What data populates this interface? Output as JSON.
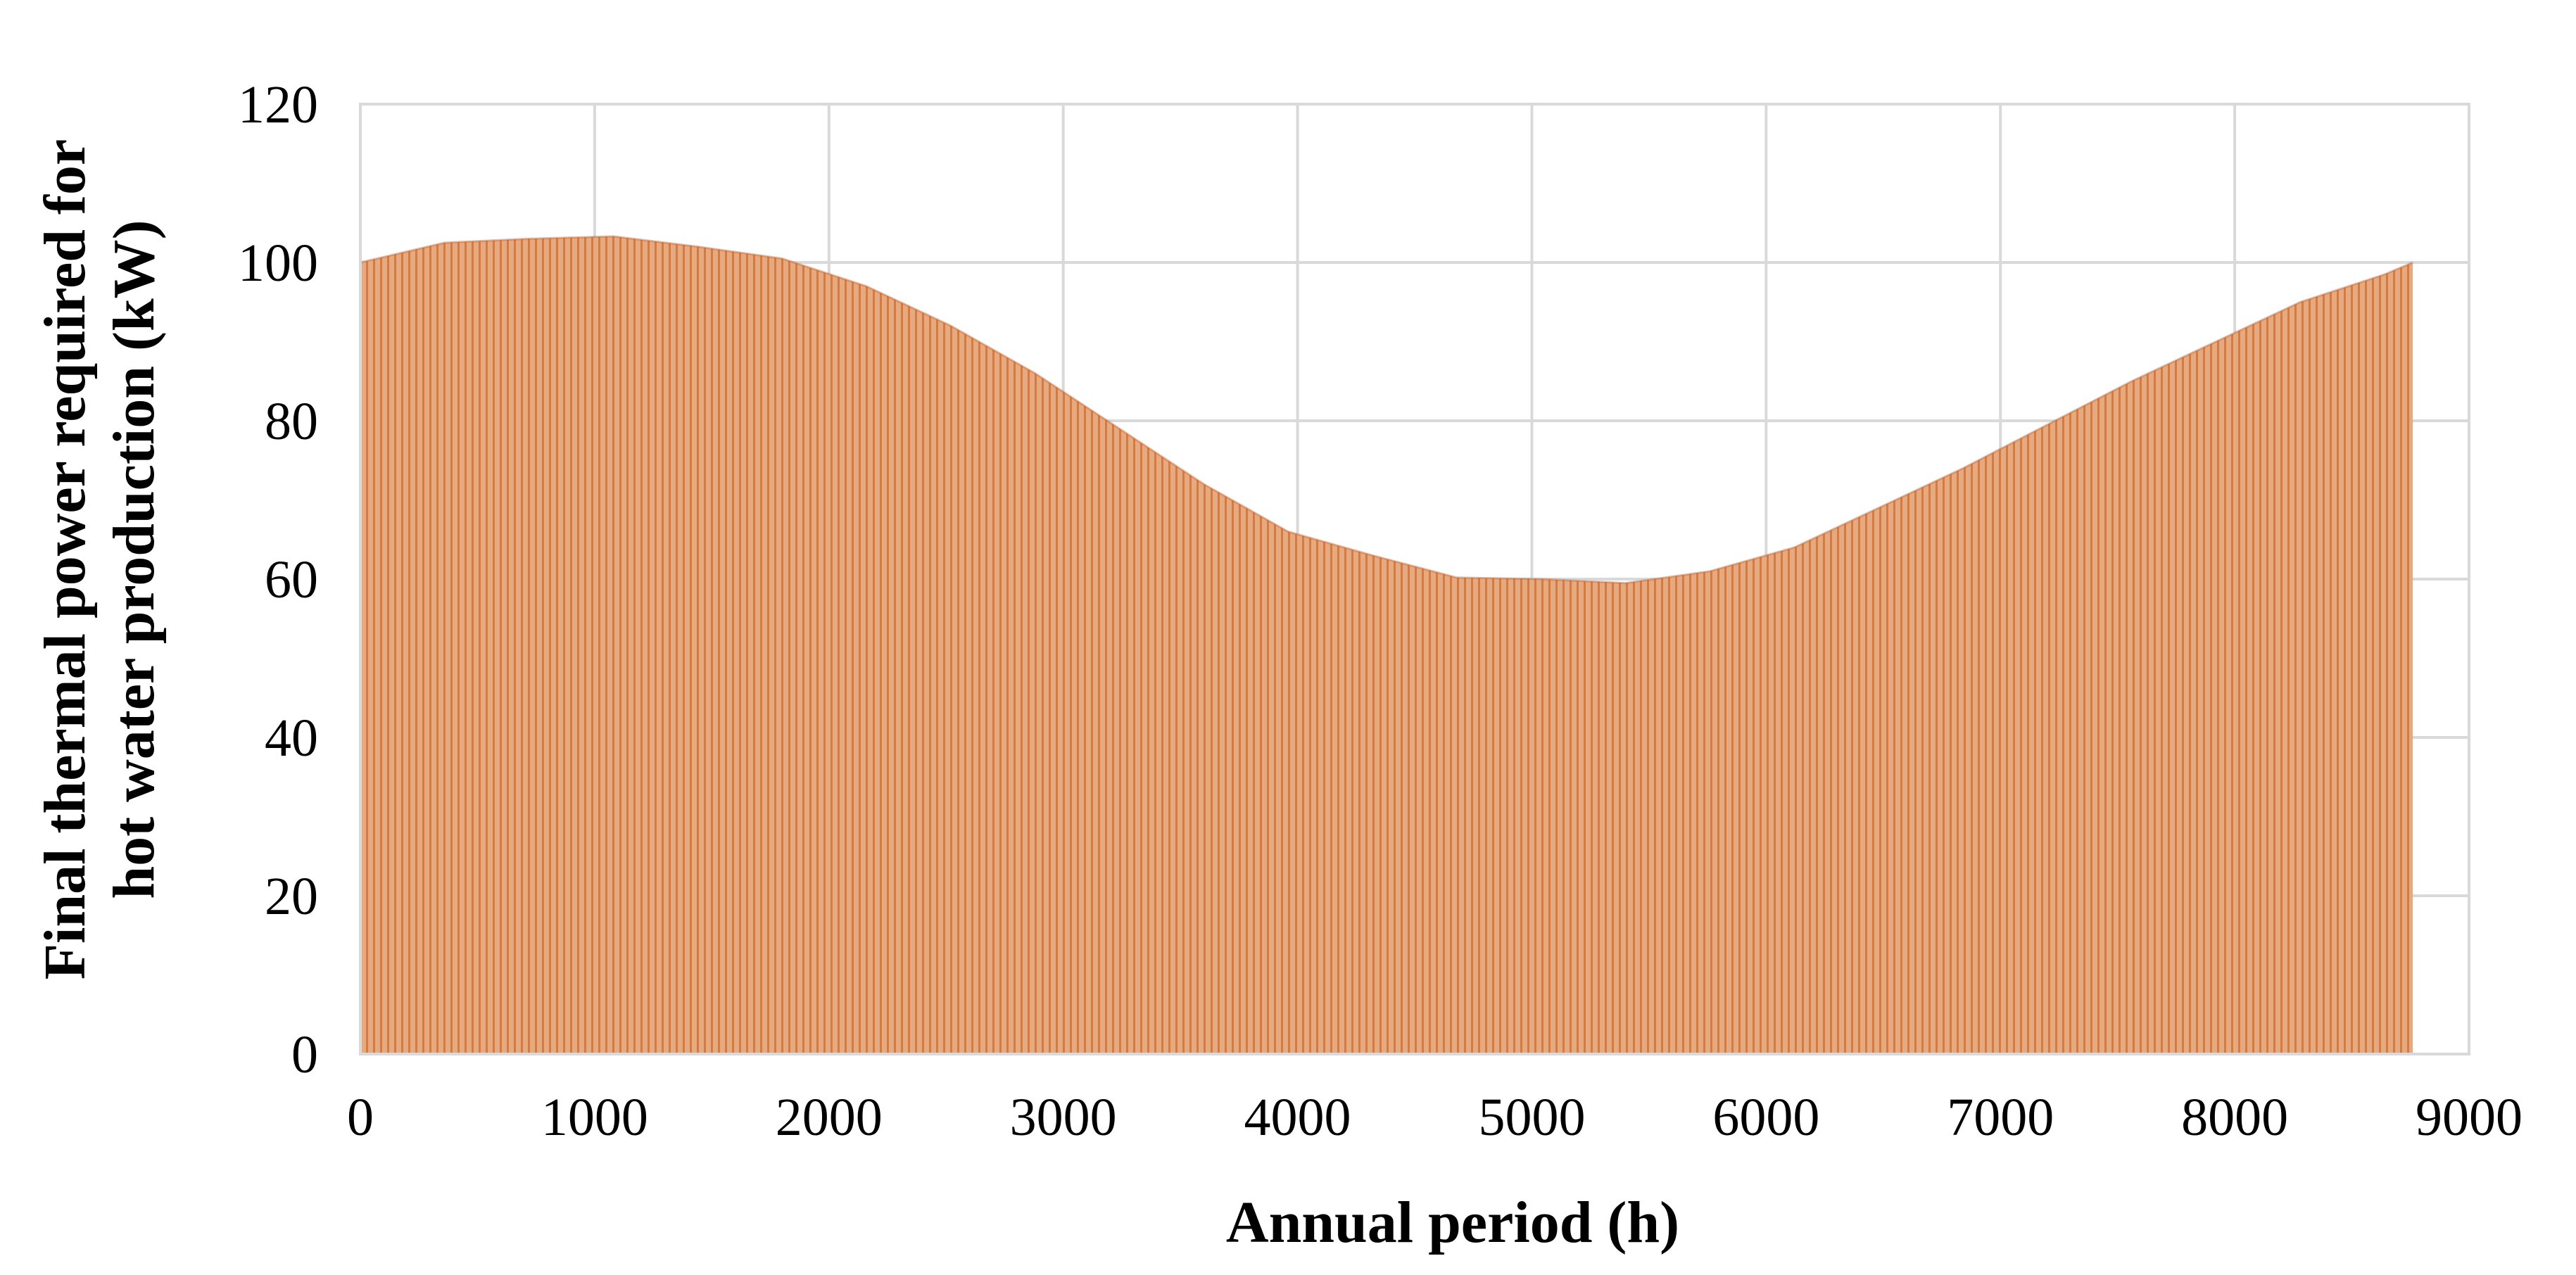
{
  "chart_data": {
    "type": "area",
    "title": "",
    "xlabel": "Annual period (h)",
    "ylabel_line1": "Final thermal power required for",
    "ylabel_line2": "hot water production (kW)",
    "xlim": [
      0,
      9000
    ],
    "ylim": [
      0,
      120
    ],
    "x_ticks": [
      0,
      1000,
      2000,
      3000,
      4000,
      5000,
      6000,
      7000,
      8000,
      9000
    ],
    "y_ticks": [
      0,
      20,
      40,
      60,
      80,
      100,
      120
    ],
    "x_tick_labels": [
      "0",
      "1000",
      "2000",
      "3000",
      "4000",
      "5000",
      "6000",
      "7000",
      "8000",
      "9000"
    ],
    "y_tick_labels": [
      "0",
      "20",
      "40",
      "60",
      "80",
      "100",
      "120"
    ],
    "grid": true,
    "series": [
      {
        "name": "Final thermal power (kW)",
        "color": "#e3a679",
        "stroke_color": "#c9632a",
        "note": "dense hourly profile; envelope points below",
        "x": [
          0,
          360,
          720,
          1080,
          1440,
          1800,
          2160,
          2520,
          2880,
          3240,
          3600,
          3960,
          4320,
          4680,
          5040,
          5400,
          5760,
          6120,
          6480,
          6840,
          7200,
          7560,
          7920,
          8280,
          8640,
          8760
        ],
        "envelope": [
          100,
          102.5,
          103,
          103.3,
          102,
          100.5,
          97,
          92,
          86,
          79,
          72,
          66,
          63,
          60.2,
          60,
          59.5,
          61,
          64,
          69,
          74,
          79.5,
          85,
          90,
          95,
          98.5,
          100
        ]
      }
    ]
  }
}
